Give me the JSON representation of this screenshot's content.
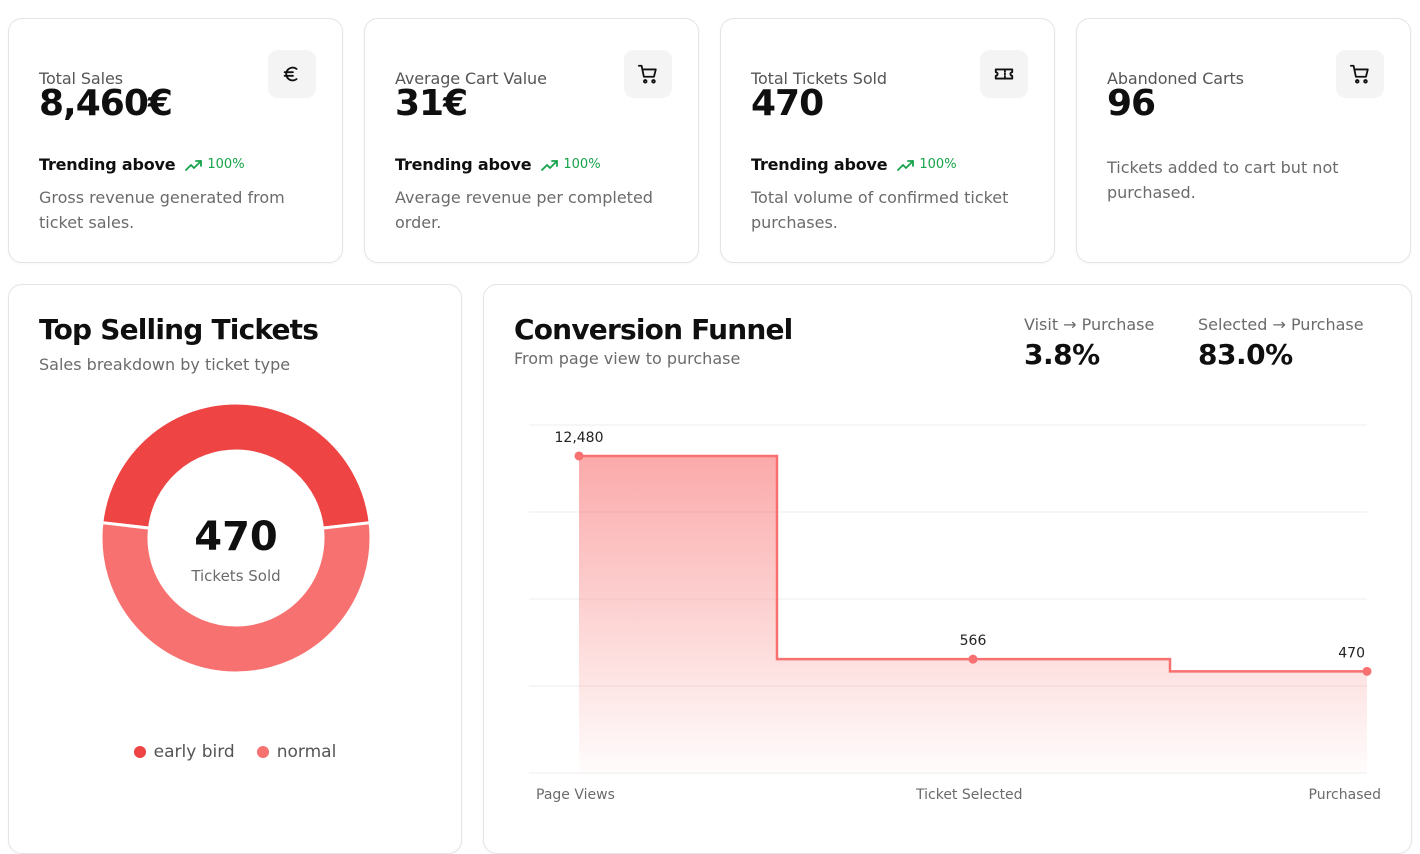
{
  "stats": [
    {
      "title": "Total Sales",
      "value": "8,460€",
      "icon": "euro-icon",
      "trend_label": "Trending above",
      "trend_pct": "100%",
      "description": "Gross revenue generated from ticket sales."
    },
    {
      "title": "Average Cart Value",
      "value": "31€",
      "icon": "cart-icon",
      "trend_label": "Trending above",
      "trend_pct": "100%",
      "description": "Average revenue per completed order."
    },
    {
      "title": "Total Tickets Sold",
      "value": "470",
      "icon": "ticket-icon",
      "trend_label": "Trending above",
      "trend_pct": "100%",
      "description": "Total volume of confirmed ticket purchases."
    },
    {
      "title": "Abandoned Carts",
      "value": "96",
      "icon": "cart-icon",
      "description": "Tickets added to cart but not purchased."
    }
  ],
  "top_selling": {
    "title": "Top Selling Tickets",
    "subtitle": "Sales breakdown by ticket type",
    "center_value": "470",
    "center_label": "Tickets Sold",
    "legend": [
      {
        "name": "early bird",
        "color": "#ef4444"
      },
      {
        "name": "normal",
        "color": "#f87171"
      }
    ]
  },
  "funnel": {
    "title": "Conversion Funnel",
    "subtitle": "From page view to purchase",
    "metrics": [
      {
        "label": "Visit → Purchase",
        "value": "3.8%"
      },
      {
        "label": "Selected → Purchase",
        "value": "83.0%"
      }
    ]
  },
  "chart_data": [
    {
      "type": "pie",
      "labels": [
        "early bird",
        "normal"
      ],
      "values": [
        218,
        252
      ],
      "colors": [
        "#ef4444",
        "#f87171"
      ]
    },
    {
      "type": "area",
      "categories": [
        "Page Views",
        "Ticket Selected",
        "Purchased"
      ],
      "values": [
        12480,
        566,
        470
      ],
      "value_labels": [
        "12,480",
        "566",
        "470"
      ],
      "scale": "log",
      "ylim": [
        100,
        20000
      ],
      "step": true,
      "grid": true,
      "color": "#f87171"
    }
  ],
  "colors": {
    "accent": "#ef4444",
    "accent_light": "#f87171",
    "trend_up": "#16a34a"
  }
}
